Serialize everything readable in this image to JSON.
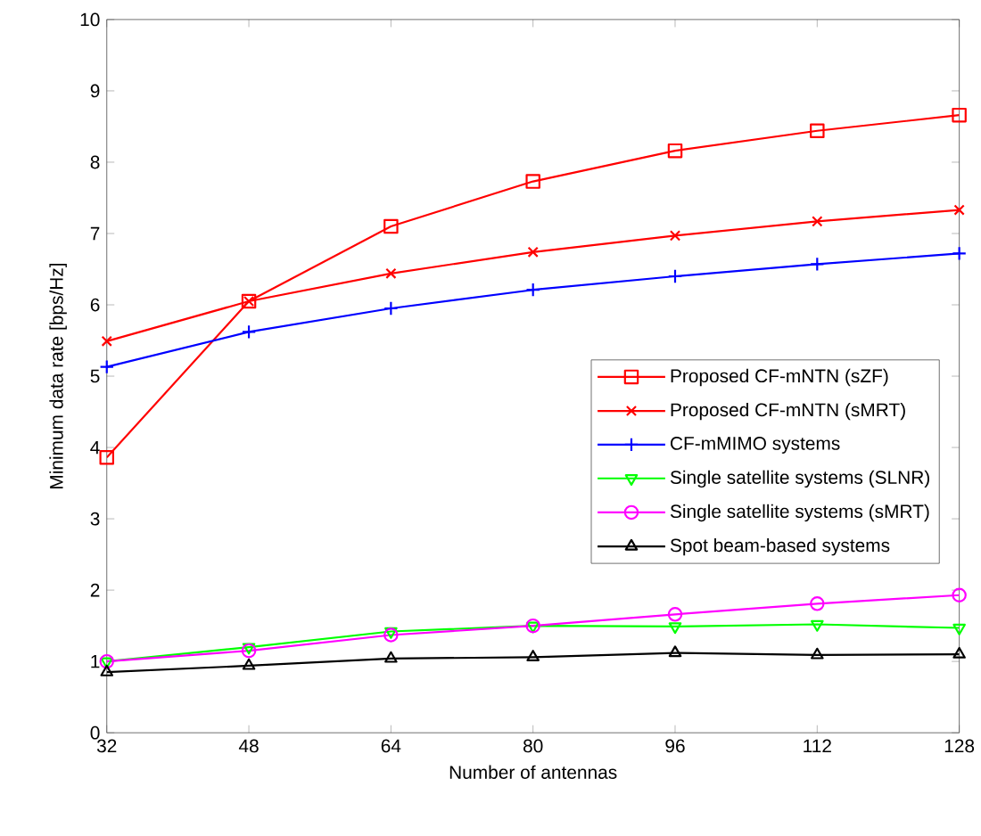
{
  "chart_data": {
    "type": "line",
    "xlabel": "Number of antennas",
    "ylabel": "Minimum data rate [bps/Hz]",
    "x": [
      32,
      48,
      64,
      80,
      96,
      112,
      128
    ],
    "xlim": [
      32,
      128
    ],
    "xticks": [
      32,
      48,
      64,
      80,
      96,
      112,
      128
    ],
    "ylim": [
      0,
      10
    ],
    "yticks": [
      0,
      1,
      2,
      3,
      4,
      5,
      6,
      7,
      8,
      9,
      10
    ],
    "grid": false,
    "legend": "right",
    "line_style": "solid",
    "series": [
      {
        "name": "Proposed CF-mNTN (sZF)",
        "color": "#ff0000",
        "marker": "square",
        "values": [
          3.86,
          6.05,
          7.1,
          7.73,
          8.16,
          8.44,
          8.66
        ]
      },
      {
        "name": "Proposed CF-mNTN (sMRT)",
        "color": "#ff0000",
        "marker": "cross",
        "values": [
          5.49,
          6.05,
          6.44,
          6.74,
          6.97,
          7.17,
          7.33
        ]
      },
      {
        "name": "CF-mMIMO systems",
        "color": "#0000ff",
        "marker": "plus",
        "values": [
          5.13,
          5.62,
          5.95,
          6.21,
          6.4,
          6.57,
          6.72
        ]
      },
      {
        "name": "Single satellite systems (SLNR)",
        "color": "#00ff00",
        "marker": "triangle_down",
        "values": [
          1.0,
          1.2,
          1.42,
          1.5,
          1.49,
          1.52,
          1.47
        ]
      },
      {
        "name": "Single satellite systems (sMRT)",
        "color": "#ff00ff",
        "marker": "circle",
        "values": [
          1.0,
          1.15,
          1.37,
          1.5,
          1.66,
          1.81,
          1.93
        ]
      },
      {
        "name": "Spot beam-based systems",
        "color": "#000000",
        "marker": "triangle",
        "values": [
          0.85,
          0.94,
          1.04,
          1.06,
          1.12,
          1.09,
          1.1
        ]
      }
    ]
  }
}
